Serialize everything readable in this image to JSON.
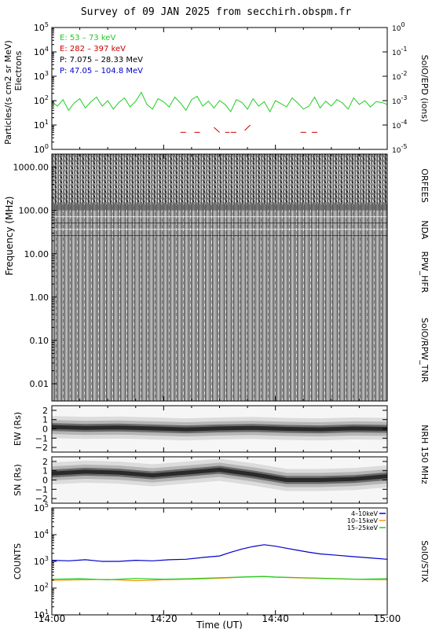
{
  "title": "Survey of 09 JAN 2025 from secchirh.obspm.fr",
  "x_axis": {
    "label": "Time (UT)",
    "ticks": [
      "14:00",
      "14:20",
      "14:40",
      "15:00"
    ]
  },
  "chart_data": [
    {
      "type": "line",
      "panel": "epd",
      "ylabel": "Particles/(s cm2 sr MeV)",
      "ylabel2": "Electrons",
      "right_label": "SolO/EPD (ions)",
      "ylim": [
        1,
        100000
      ],
      "yscale": "log",
      "y_ticks": [
        "10^0",
        "10^1",
        "10^2",
        "10^3",
        "10^4",
        "10^5"
      ],
      "right_ylim": [
        1e-05,
        1
      ],
      "right_ticks": [
        "10^-5",
        "10^-4",
        "10^-3",
        "10^-2",
        "10^-1",
        "10^0"
      ],
      "legend": [
        {
          "label": "E: 53 – 73 keV",
          "color": "#22cc22"
        },
        {
          "label": "E: 282 – 397 keV",
          "color": "#cc0000"
        },
        {
          "label": "P: 7.075 – 28.33 MeV",
          "color": "#000000"
        },
        {
          "label": "P: 47.05 – 104.8 MeV",
          "color": "#0000cc"
        }
      ],
      "series": [
        {
          "name": "E: 53 – 73 keV",
          "color": "#22cc22",
          "x_minutes": [
            0,
            1,
            2,
            3,
            4,
            5,
            6,
            7,
            8,
            9,
            10,
            11,
            12,
            13,
            14,
            15,
            16,
            17,
            18,
            19,
            20,
            21,
            22,
            23,
            24,
            25,
            26,
            27,
            28,
            29,
            30,
            31,
            32,
            33,
            34,
            35,
            36,
            37,
            38,
            39,
            40,
            41,
            42,
            43,
            44,
            45,
            46,
            47,
            48,
            49,
            50,
            51,
            52,
            53,
            54,
            55,
            56,
            57,
            58,
            59,
            60
          ],
          "values": [
            90,
            60,
            110,
            40,
            80,
            120,
            50,
            90,
            140,
            60,
            100,
            45,
            85,
            130,
            55,
            95,
            220,
            70,
            45,
            120,
            90,
            55,
            140,
            80,
            40,
            110,
            150,
            60,
            95,
            50,
            100,
            70,
            35,
            110,
            85,
            45,
            120,
            60,
            90,
            35,
            100,
            75,
            55,
            130,
            80,
            45,
            60,
            140,
            50,
            95,
            60,
            110,
            80,
            45,
            130,
            70,
            100,
            55,
            90,
            85,
            70
          ]
        },
        {
          "name": "E: 282 – 397 keV",
          "color": "#cc0000",
          "x_minutes": [
            23,
            24,
            25.5,
            26.5,
            29,
            30,
            31,
            31.8,
            32,
            33,
            34.5,
            35.5,
            44.5,
            45.5,
            46.5,
            47.5
          ],
          "values": [
            5,
            5,
            5,
            5,
            8,
            5,
            5,
            5,
            5,
            5,
            6,
            10,
            5,
            5,
            5,
            5
          ]
        }
      ]
    },
    {
      "type": "heatmap",
      "panel": "radio",
      "ylabel": "Frequency (MHz)",
      "yscale": "log",
      "ylim": [
        0.004,
        2000
      ],
      "y_ticks": [
        0.01,
        0.1,
        1,
        10,
        100,
        1000
      ],
      "y_tick_labels": [
        "0.01",
        "0.10",
        "1.00",
        "10.00",
        "100.00",
        "1000.00"
      ],
      "bands": [
        {
          "label": "SolO/RPW_TNR",
          "range_mhz": [
            0.004,
            0.9
          ]
        },
        {
          "label": "RPW_HFR",
          "range_mhz": [
            0.9,
            16
          ]
        },
        {
          "label": "NDA",
          "range_mhz": [
            16,
            80
          ]
        },
        {
          "label": "ORFEES",
          "range_mhz": [
            140,
            1000
          ]
        }
      ]
    },
    {
      "type": "heatmap",
      "panel": "nrh_ew",
      "ylabel": "EW (Rs)",
      "ylim": [
        -2.5,
        2.5
      ],
      "y_ticks": [
        -2,
        -1,
        0,
        1,
        2
      ],
      "dark_ridge_center_rs": [
        0.2,
        0.1,
        0.15,
        0.05,
        -0.05,
        0.05,
        0.1,
        0.0,
        -0.05,
        0.05,
        0.0
      ],
      "right_label": "NRH 150 MHz"
    },
    {
      "type": "heatmap",
      "panel": "nrh_sn",
      "ylabel": "SN (Rs)",
      "ylim": [
        -2.5,
        2.5
      ],
      "y_ticks": [
        -2,
        -1,
        0,
        1,
        2
      ],
      "dark_ridge_center_rs": [
        0.7,
        0.9,
        0.8,
        0.5,
        0.8,
        1.1,
        0.6,
        0.0,
        0.0,
        0.1,
        0.4
      ]
    },
    {
      "type": "line",
      "panel": "stix",
      "ylabel": "COUNTS",
      "right_label": "SolO/STIX",
      "yscale": "log",
      "ylim": [
        10,
        100000
      ],
      "y_ticks": [
        "10^1",
        "10^2",
        "10^3",
        "10^4",
        "10^5"
      ],
      "legend": [
        {
          "label": "4–10keV",
          "color": "#0000cc"
        },
        {
          "label": "10–15keV",
          "color": "#ff9900"
        },
        {
          "label": "15–25keV",
          "color": "#22cc22"
        }
      ],
      "series": [
        {
          "name": "4–10keV",
          "color": "#0000cc",
          "x_minutes": [
            0,
            3,
            6,
            9,
            12,
            15,
            18,
            21,
            24,
            27,
            30,
            32,
            34,
            36,
            38,
            40,
            42,
            44,
            46,
            48,
            51,
            54,
            57,
            60
          ],
          "values": [
            1100,
            1050,
            1150,
            1000,
            1000,
            1100,
            1050,
            1150,
            1200,
            1400,
            1600,
            2200,
            2900,
            3600,
            4200,
            3700,
            3100,
            2600,
            2200,
            1900,
            1700,
            1500,
            1350,
            1200
          ]
        },
        {
          "name": "10–15keV",
          "color": "#ff9900",
          "x_minutes": [
            0,
            5,
            10,
            15,
            20,
            25,
            30,
            35,
            38,
            40,
            45,
            50,
            55,
            60
          ],
          "values": [
            195,
            205,
            210,
            190,
            205,
            215,
            235,
            260,
            270,
            255,
            240,
            225,
            210,
            205
          ]
        },
        {
          "name": "15–25keV",
          "color": "#22cc22",
          "x_minutes": [
            0,
            5,
            10,
            15,
            20,
            25,
            30,
            35,
            38,
            40,
            45,
            50,
            55,
            60
          ],
          "values": [
            215,
            225,
            205,
            230,
            215,
            225,
            245,
            265,
            275,
            260,
            245,
            230,
            215,
            225
          ]
        }
      ]
    }
  ]
}
